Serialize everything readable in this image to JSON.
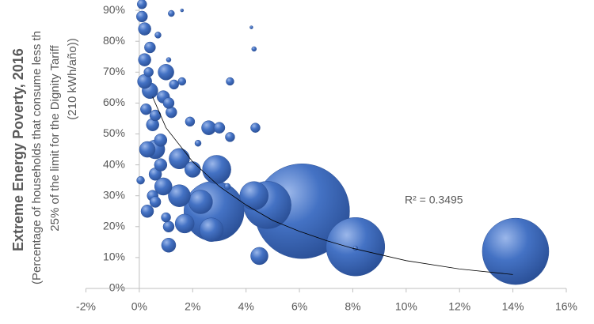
{
  "chart_data": {
    "type": "bubble",
    "y_label_lines": [
      "Extreme Energy Poverty, 2016",
      "(Percentage of households that consume less th",
      "25% of the limit for the Dignity Tariff",
      "(210 kWh/año))"
    ],
    "annotation": "R² = 0.3495",
    "color": "#4472c4",
    "edge_color": "#2a4f96",
    "x": [
      6.1,
      14.1,
      2.8,
      8.1,
      4.8,
      2.9,
      4.3,
      2.7,
      2.3,
      1.5,
      1.5,
      1.7,
      0.6,
      0.9,
      4.5,
      2.0,
      1.0,
      0.4,
      0.3,
      0.2,
      1.1,
      2.6,
      0.8,
      0.9,
      0.5,
      0.6,
      0.3,
      0.2,
      0.8,
      0.25,
      3.0,
      0.6,
      0.1,
      0.4,
      0.2,
      1.1,
      1.2,
      0.5,
      0.6,
      1.1,
      0.35,
      1.3,
      4.35,
      3.4,
      1.9,
      1.0,
      0.1,
      3.4,
      1.6,
      0.05,
      0.7,
      1.2,
      3.3,
      2.2,
      4.3,
      1.1,
      8.1,
      4.2,
      1.6
    ],
    "y": [
      25,
      12,
      25,
      13.5,
      27,
      38.5,
      30,
      19,
      28,
      42,
      30,
      21,
      45,
      33,
      10.5,
      38.5,
      70,
      64,
      45,
      67,
      14,
      52,
      48,
      62,
      53,
      37,
      25,
      84,
      40,
      58,
      52,
      56,
      88,
      78,
      74,
      20,
      57,
      30,
      28,
      60,
      70,
      66,
      52,
      49,
      54,
      23,
      92,
      67,
      67,
      35,
      82,
      89,
      33,
      47,
      77.5,
      74,
      13,
      84.5,
      90
    ],
    "sizes": [
      100,
      49,
      40,
      38,
      25,
      9,
      9,
      6.25,
      6.25,
      4.69,
      5.44,
      4,
      4,
      3.36,
      3.36,
      2.78,
      2.78,
      2.78,
      2.78,
      2.25,
      2.25,
      2.25,
      1.78,
      1.78,
      1.78,
      1.78,
      1.78,
      1.78,
      1.78,
      1.36,
      1.36,
      1.36,
      1.36,
      1.36,
      1.78,
      1.36,
      1.36,
      1.36,
      1.36,
      1.36,
      1,
      1,
      1,
      1,
      1,
      1,
      1,
      0.69,
      0.69,
      0.69,
      0.44,
      0.44,
      0.44,
      0.44,
      0.25,
      0.25,
      0.25,
      0.11,
      0.11
    ],
    "trendline": {
      "x": [
        0.5,
        1,
        2,
        3,
        4,
        5,
        6,
        7,
        8,
        10,
        12,
        14
      ],
      "y": [
        62,
        52,
        41,
        33,
        27,
        22,
        18.5,
        15.5,
        13,
        9,
        6.3,
        4.5
      ]
    },
    "xlim": [
      -2,
      16
    ],
    "xticks": [
      {
        "value": -2,
        "label": "-2%"
      },
      {
        "value": 0,
        "label": "0%"
      },
      {
        "value": 2,
        "label": "2%"
      },
      {
        "value": 4,
        "label": "4%"
      },
      {
        "value": 6,
        "label": "6%"
      },
      {
        "value": 8,
        "label": "8%"
      },
      {
        "value": 10,
        "label": "10%"
      },
      {
        "value": 12,
        "label": "12%"
      },
      {
        "value": 14,
        "label": "14%"
      },
      {
        "value": 16,
        "label": "16%"
      }
    ],
    "ylim": [
      0,
      100
    ],
    "yticks": [
      {
        "value": 0,
        "label": "0%"
      },
      {
        "value": 10,
        "label": "10%"
      },
      {
        "value": 20,
        "label": "20%"
      },
      {
        "value": 30,
        "label": "30%"
      },
      {
        "value": 40,
        "label": "40%"
      },
      {
        "value": 50,
        "label": "50%"
      },
      {
        "value": 60,
        "label": "60%"
      },
      {
        "value": 70,
        "label": "70%"
      },
      {
        "value": 80,
        "label": "80%"
      },
      {
        "value": 90,
        "label": "90%"
      }
    ]
  }
}
